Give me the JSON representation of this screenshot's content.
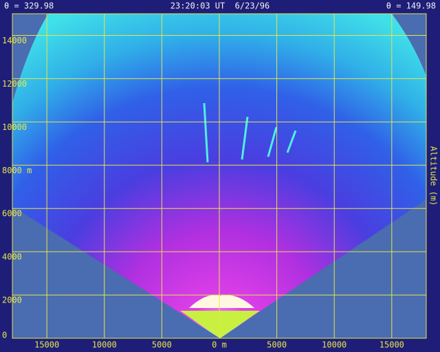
{
  "chart_data": {
    "type": "radar-scan",
    "header": {
      "left": "θ = 329.98",
      "center": "23:20:03 UT  6/23/96",
      "right": "θ = 149.98"
    },
    "ylabel": "Altitude (m)",
    "xlim": [
      -18000,
      18000
    ],
    "ylim": [
      0,
      15000
    ],
    "xticks": [
      {
        "value": -15000,
        "label": "15000"
      },
      {
        "value": -10000,
        "label": "10000"
      },
      {
        "value": -5000,
        "label": "5000"
      },
      {
        "value": 0,
        "label": "0 m"
      },
      5000,
      10000,
      15000
    ],
    "yticks": [
      0,
      2000,
      4000,
      6000,
      {
        "value": 8000,
        "label": "8000 m"
      },
      10000,
      12000,
      14000
    ],
    "grid": true,
    "grid_color": "#e6e64a"
  }
}
